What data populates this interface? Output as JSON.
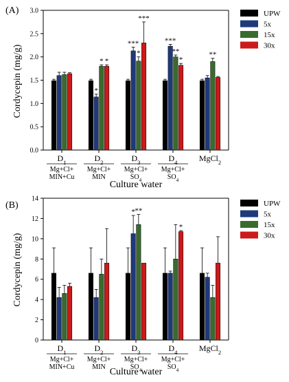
{
  "chart_data": [
    {
      "panel_label": "(A)",
      "type": "bar",
      "ylabel": "Cordycepin (mg/g)",
      "xlabel": "Culture water",
      "ylim": [
        0,
        3.0
      ],
      "yticks": [
        "0.0",
        "0.5",
        "1.0",
        "1.5",
        "2.0",
        "2.5",
        "3.0"
      ],
      "groups": [
        {
          "code": "D1",
          "sub": [
            "Mg+Cl+",
            "MIN+Cu"
          ]
        },
        {
          "code": "D2",
          "sub": [
            "Mg+Cl+",
            "MIN"
          ]
        },
        {
          "code": "D3",
          "sub": [
            "Mg+Cl+",
            "SO4"
          ]
        },
        {
          "code": "D4",
          "sub": [
            "Mg+Cl+",
            "SO4"
          ]
        },
        {
          "code": "MgCl2",
          "sub": []
        }
      ],
      "series": [
        {
          "name": "UPW",
          "color": "#000000",
          "values": [
            1.49,
            1.49,
            1.49,
            1.49,
            1.49
          ],
          "errors": [
            0.03,
            0.03,
            0.03,
            0.03,
            0.03
          ],
          "marks": [
            "",
            "",
            "",
            "",
            ""
          ]
        },
        {
          "name": "5x",
          "color": "#1f3a7a",
          "values": [
            1.6,
            1.14,
            2.13,
            2.23,
            1.55
          ],
          "errors": [
            0.07,
            0.06,
            0.08,
            0.04,
            0.05
          ],
          "marks": [
            "",
            "*",
            "***",
            "***",
            ""
          ]
        },
        {
          "name": "15x",
          "color": "#3a6b2e",
          "values": [
            1.62,
            1.8,
            1.91,
            2.0,
            1.9
          ],
          "errors": [
            0.05,
            0.03,
            0.09,
            0.04,
            0.07
          ],
          "marks": [
            "",
            "*",
            "*",
            "**",
            "**"
          ]
        },
        {
          "name": "30x",
          "color": "#cc1a1a",
          "values": [
            1.64,
            1.8,
            2.3,
            1.82,
            1.56
          ],
          "errors": [
            0.02,
            0.03,
            0.45,
            0.04,
            0.02
          ],
          "marks": [
            "",
            "*",
            "***",
            "*",
            ""
          ]
        }
      ]
    },
    {
      "panel_label": "(B)",
      "type": "bar",
      "ylabel": "Cordycepin (mg/g)",
      "xlabel": "Culture water",
      "ylim": [
        0,
        14
      ],
      "yticks": [
        "0",
        "2",
        "4",
        "6",
        "8",
        "10",
        "12",
        "14"
      ],
      "groups": [
        {
          "code": "D1",
          "sub": [
            "Mg+Cl+",
            "MIN+Cu"
          ]
        },
        {
          "code": "D2",
          "sub": [
            "Mg+Cl+",
            "MIN"
          ]
        },
        {
          "code": "D3",
          "sub": [
            "Mg+Cl+",
            "SO4"
          ]
        },
        {
          "code": "D4",
          "sub": [
            "Mg+Cl+",
            "SO4"
          ]
        },
        {
          "code": "MgCl2",
          "sub": []
        }
      ],
      "series": [
        {
          "name": "UPW",
          "color": "#000000",
          "values": [
            6.6,
            6.6,
            6.6,
            6.6,
            6.6
          ],
          "errors": [
            2.5,
            2.5,
            2.5,
            2.5,
            2.5
          ],
          "marks": [
            "",
            "",
            "",
            "",
            ""
          ]
        },
        {
          "name": "5x",
          "color": "#1f3a7a",
          "values": [
            4.2,
            4.2,
            10.5,
            6.6,
            6.2
          ],
          "errors": [
            1.0,
            0.8,
            1.8,
            0.2,
            0.4
          ],
          "marks": [
            "",
            "",
            "*",
            "",
            ""
          ]
        },
        {
          "name": "15x",
          "color": "#3a6b2e",
          "values": [
            4.6,
            6.5,
            11.4,
            8.0,
            4.2
          ],
          "errors": [
            0.8,
            1.5,
            1.0,
            3.4,
            1.2
          ],
          "marks": [
            "",
            "",
            "**",
            "",
            ""
          ]
        },
        {
          "name": "30x",
          "color": "#cc1a1a",
          "values": [
            5.3,
            7.6,
            7.6,
            10.7,
            7.6
          ],
          "errors": [
            0.3,
            3.4,
            0.0,
            0.1,
            2.6
          ],
          "marks": [
            "",
            "",
            "",
            "*",
            ""
          ]
        }
      ]
    }
  ]
}
